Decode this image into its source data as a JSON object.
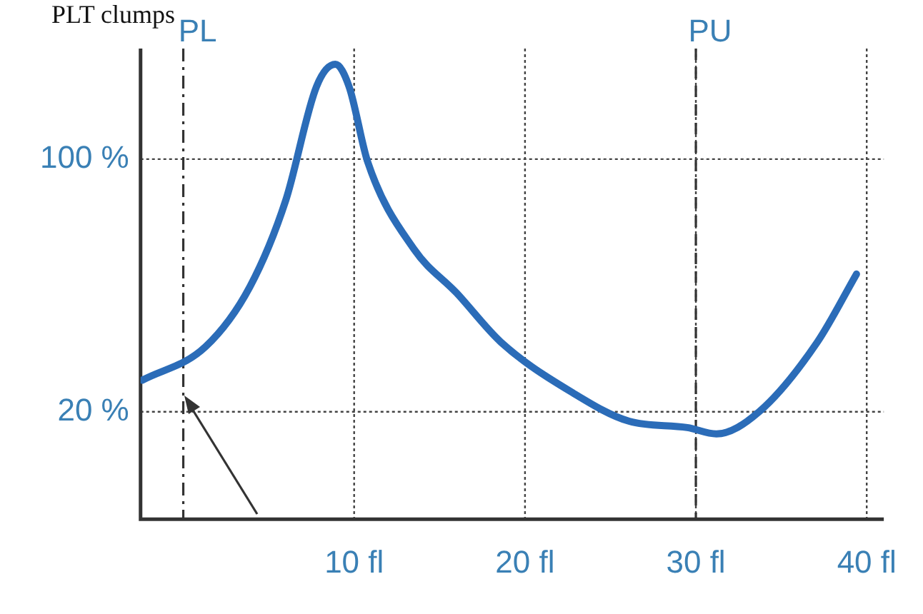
{
  "chart_data": {
    "type": "line",
    "title": "PLT clumps",
    "x": [
      -2.4,
      1.3,
      3.9,
      6.0,
      7.8,
      8.9,
      9.7,
      10.8,
      13.5,
      16,
      18.6,
      22.8,
      26.1,
      29.5,
      31.2,
      33.7,
      37.1,
      39.4
    ],
    "series": [
      {
        "color": "#2b6cb8",
        "values": [
          30,
          40.6,
          59.6,
          87,
          123,
          130,
          123,
          99,
          71.5,
          57.6,
          42,
          26,
          17,
          15,
          13,
          20,
          42,
          63.6
        ]
      }
    ],
    "xlim": [
      -2.5,
      41
    ],
    "xticks": [
      {
        "value": 10,
        "label": "10 fl"
      },
      {
        "value": 20,
        "label": "20 fl"
      },
      {
        "value": 30,
        "label": "30 fl"
      },
      {
        "value": 40,
        "label": "40 fl"
      }
    ],
    "ylim": [
      -14,
      135
    ],
    "yticks": [
      {
        "value": 20,
        "label": "20 %"
      },
      {
        "value": 100,
        "label": "100 %"
      }
    ],
    "ref_lines": [
      {
        "axis": "x",
        "value": 0,
        "label": "PL",
        "line_style": "dashdot"
      },
      {
        "axis": "x",
        "value": 30,
        "label": "PU",
        "line_style": "dashed"
      }
    ],
    "grid": true,
    "legend": false,
    "marker": "none",
    "line_style": "solid"
  }
}
